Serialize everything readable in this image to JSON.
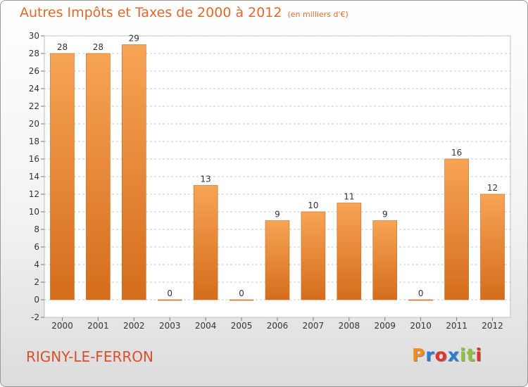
{
  "header": {
    "title": "Autres Impôts et Taxes de 2000 à 2012",
    "subtitle": "(en milliers d'€)"
  },
  "footer": {
    "place": "RIGNY-LE-FERRON",
    "logo": "Proxiti",
    "logo_colors": [
      "#f08c1e",
      "#2b7fd3",
      "#e2322b",
      "#2b7fd3",
      "#8cc63f",
      "#8cc63f",
      "#e2322b"
    ]
  },
  "chart_data": {
    "type": "bar",
    "categories": [
      "2000",
      "2001",
      "2002",
      "2003",
      "2004",
      "2005",
      "2006",
      "2007",
      "2008",
      "2009",
      "2010",
      "2011",
      "2012"
    ],
    "values": [
      28,
      28,
      29,
      0,
      13,
      0,
      9,
      10,
      11,
      9,
      0,
      16,
      12
    ],
    "data_labels": [
      "28",
      "28",
      "29",
      "0",
      "13",
      "0",
      "9",
      "10",
      "11",
      "9",
      "0",
      "16",
      "12"
    ],
    "ylim": [
      -2,
      30
    ],
    "yticks": [
      "30",
      "28",
      "26",
      "24",
      "22",
      "20",
      "18",
      "16",
      "14",
      "12",
      "10",
      "8",
      "6",
      "4",
      "2",
      "0",
      "-2"
    ],
    "grid": "horizontal dashed",
    "bar_color_top": "#f7a455",
    "bar_color_bottom": "#d46d1c"
  }
}
